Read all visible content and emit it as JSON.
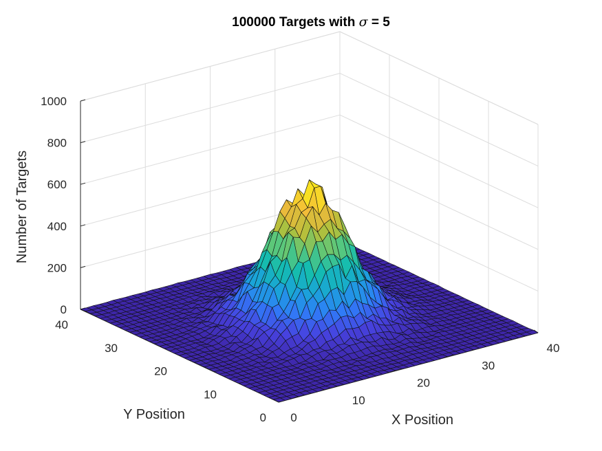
{
  "chart_data": {
    "type": "surface",
    "title_prefix": "100000 Targets with ",
    "title_symbol": "σ",
    "title_suffix": " = 5",
    "xlabel": "X Position",
    "ylabel": "Y Position",
    "zlabel": "Number of Targets",
    "xlim": [
      0,
      40
    ],
    "ylim": [
      0,
      40
    ],
    "zlim": [
      0,
      1000
    ],
    "xticks": [
      0,
      10,
      20,
      30,
      40
    ],
    "yticks": [
      0,
      10,
      20,
      30,
      40
    ],
    "zticks": [
      0,
      200,
      400,
      600,
      800,
      1000
    ],
    "grid": true,
    "peak": {
      "x": 20,
      "y": 20,
      "z": 630
    },
    "sigma": 5,
    "samples": 100000,
    "colormap": "parula",
    "colormap_stops": [
      "#3e26a8",
      "#4743e0",
      "#2f7df8",
      "#1aa4d8",
      "#14bcb0",
      "#56c77e",
      "#b1c03c",
      "#f2b93b",
      "#f9e51f"
    ]
  }
}
